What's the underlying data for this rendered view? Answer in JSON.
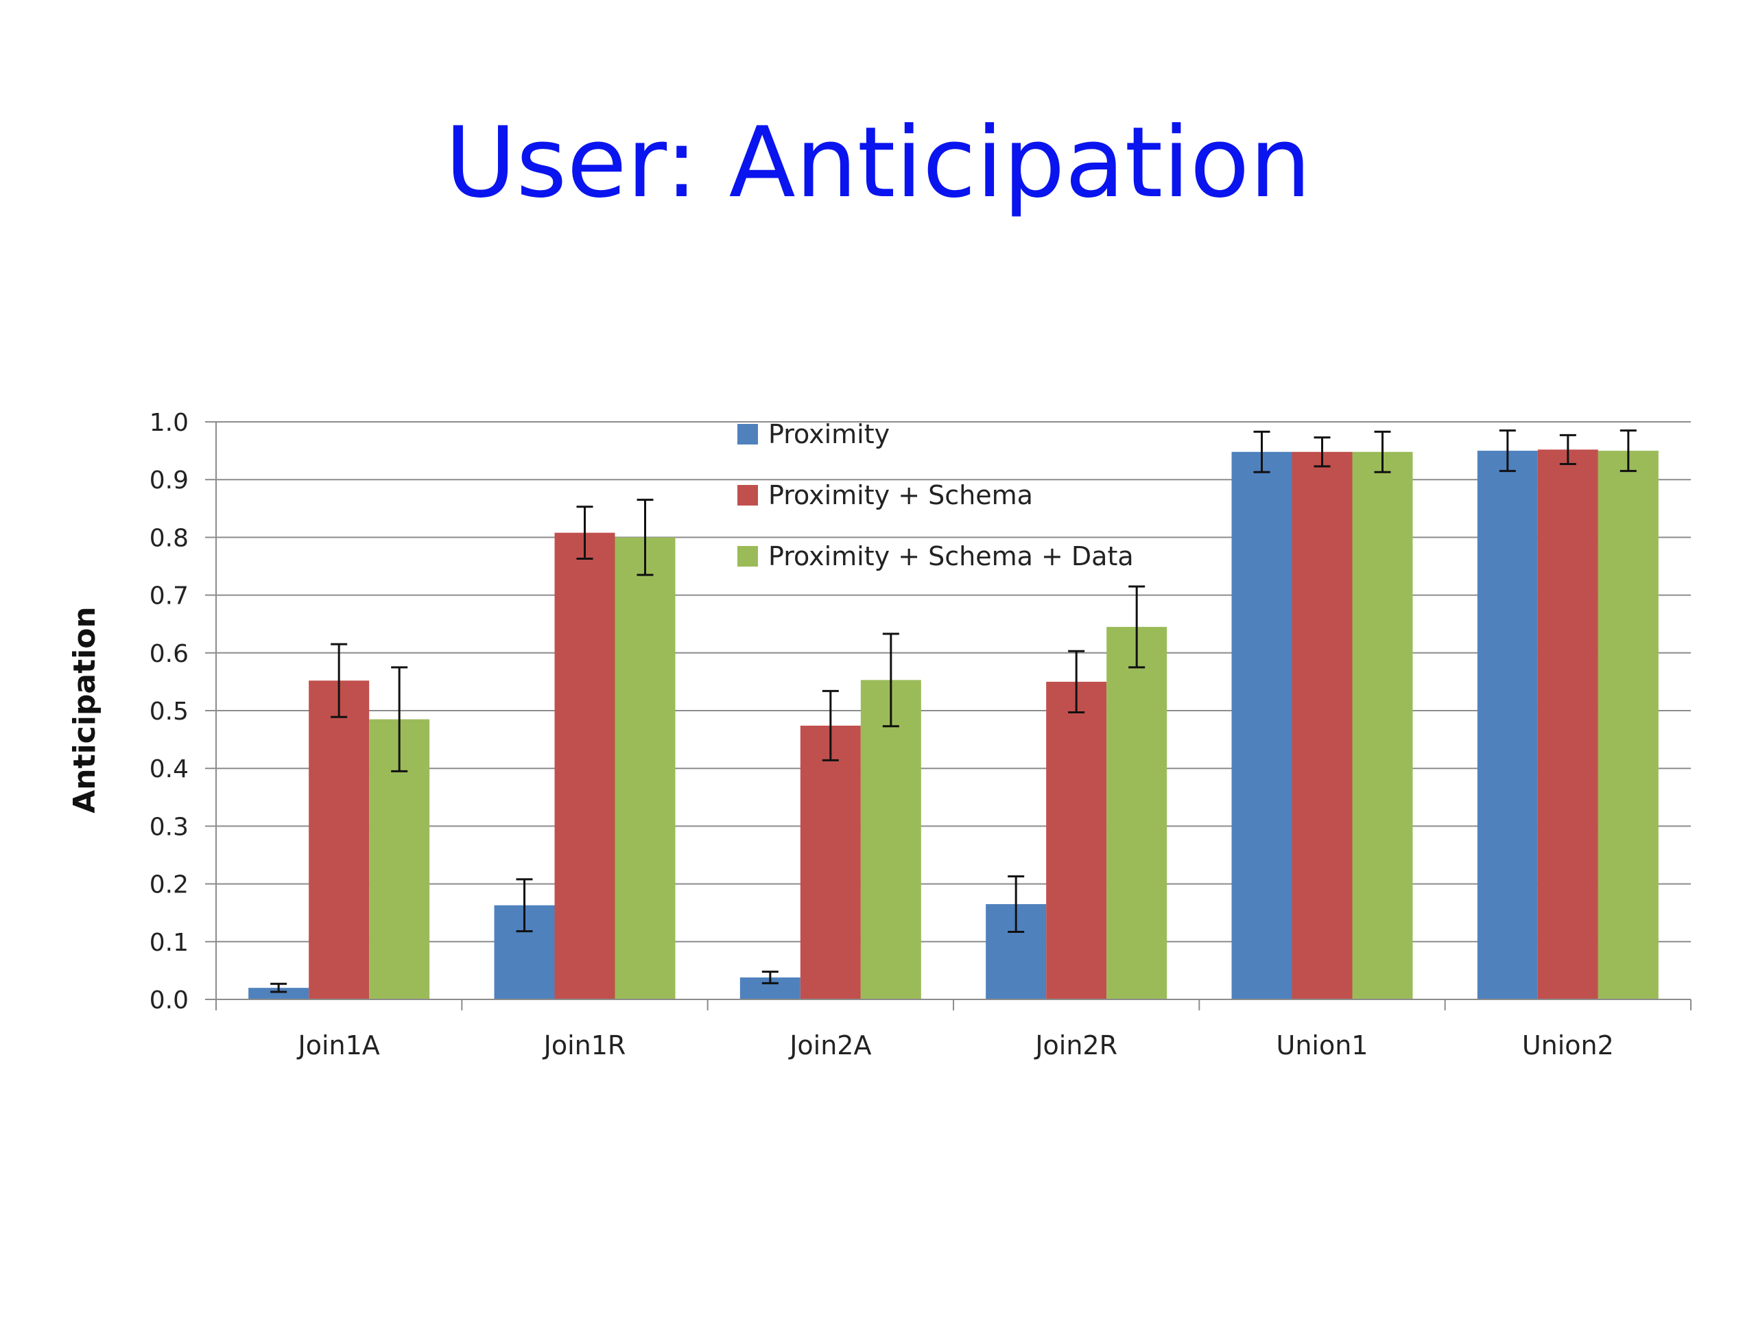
{
  "slide": {
    "title": "User: Anticipation"
  },
  "chart_data": {
    "type": "bar",
    "title": "",
    "xlabel": "",
    "ylabel": "Anticipation",
    "ylim": [
      0,
      1.0
    ],
    "yticks": [
      "0.0",
      "0.1",
      "0.2",
      "0.3",
      "0.4",
      "0.5",
      "0.6",
      "0.7",
      "0.8",
      "0.9",
      "1.0"
    ],
    "grid": true,
    "legend_position": "top-center",
    "categories": [
      "Join1A",
      "Join1R",
      "Join2A",
      "Join2R",
      "Union1",
      "Union2"
    ],
    "series": [
      {
        "name": "Proximity",
        "color": "#4f81bd",
        "values": [
          0.02,
          0.163,
          0.038,
          0.165,
          0.948,
          0.95
        ],
        "errors": [
          0.007,
          0.045,
          0.01,
          0.048,
          0.035,
          0.035
        ]
      },
      {
        "name": "Proximity + Schema",
        "color": "#c0504d",
        "values": [
          0.552,
          0.808,
          0.474,
          0.55,
          0.948,
          0.952
        ],
        "errors": [
          0.063,
          0.045,
          0.06,
          0.053,
          0.025,
          0.025
        ]
      },
      {
        "name": "Proximity + Schema + Data",
        "color": "#9bbb59",
        "values": [
          0.485,
          0.8,
          0.553,
          0.645,
          0.948,
          0.95
        ],
        "errors": [
          0.09,
          0.065,
          0.08,
          0.07,
          0.035,
          0.035
        ]
      }
    ]
  }
}
